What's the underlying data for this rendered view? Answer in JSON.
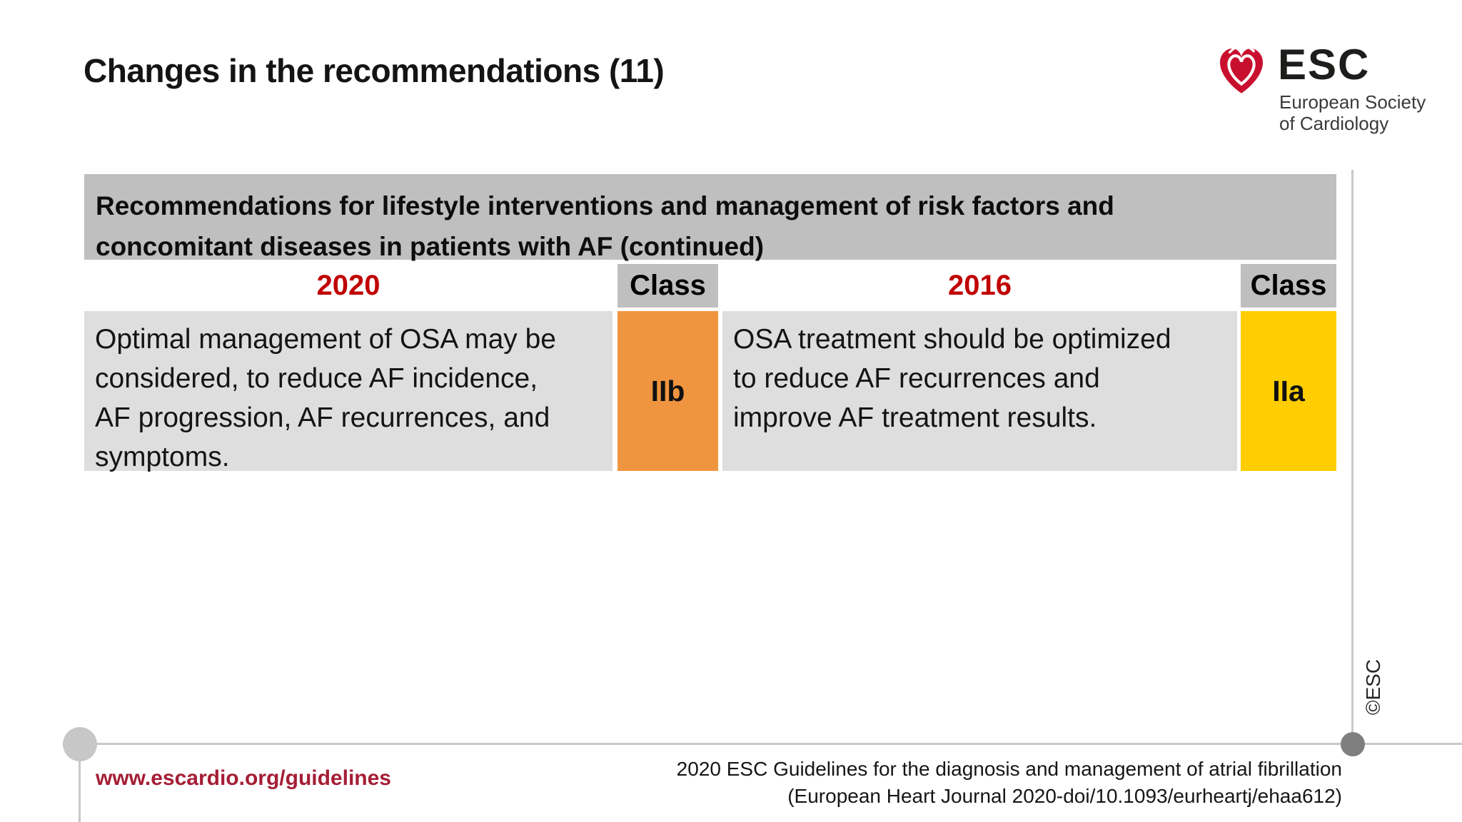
{
  "slide_title": "Changes in the recommendations (11)",
  "logo": {
    "abbr": "ESC",
    "subtitle_line1": "European Society",
    "subtitle_line2": "of Cardiology"
  },
  "table": {
    "header_lines": [
      "Recommendations for lifestyle interventions and management of risk factors and",
      "concomitant diseases in patients with AF (continued)"
    ],
    "col_2020": "2020",
    "col_class_2020": "Class",
    "col_2016": "2016",
    "col_class_2016": "Class",
    "row": {
      "text_2020_lines": [
        "Optimal management of OSA may be",
        "considered, to reduce AF incidence,",
        "AF progression, AF recurrences, and",
        "symptoms."
      ],
      "class_2020": "IIb",
      "text_2016_lines": [
        "OSA treatment should be optimized",
        "to reduce AF recurrences and",
        "improve AF treatment results."
      ],
      "class_2016": "IIa"
    }
  },
  "footer": {
    "website": "www.escardio.org/guidelines",
    "citation_line1": "2020 ESC Guidelines for the diagnosis and management of atrial fibrillation",
    "citation_line2": "(European Heart Journal 2020-doi/10.1093/eurheartj/ehaa612)",
    "copyright": "©ESC"
  },
  "colors": {
    "table_header_gray": "#BFBFBF",
    "cell_gray": "#DEDEDE",
    "class_iib_orange": "#F0953F",
    "class_iia_yellow": "#FFCD02",
    "year_red": "#C00000",
    "website_red": "#A41E35",
    "logo_red": "#C8102E",
    "timeline_gray": "#C9C9C9"
  }
}
